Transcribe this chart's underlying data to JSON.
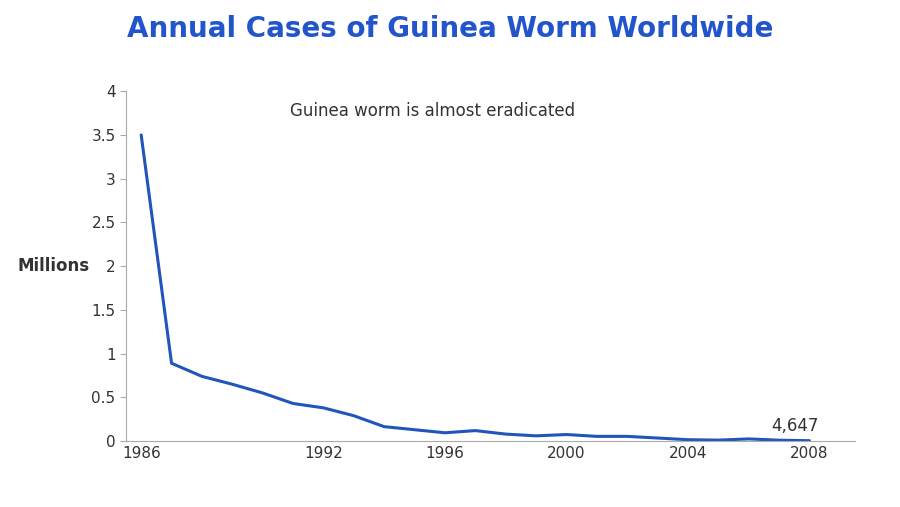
{
  "title": "Annual Cases of Guinea Worm Worldwide",
  "subtitle": "Guinea worm is almost eradicated",
  "ylabel": "Millions",
  "title_color": "#2255CC",
  "subtitle_color": "#333333",
  "line_color": "#2255BB",
  "background_color": "#ffffff",
  "annotation_text": "4,647",
  "annotation_year": 2008,
  "annotation_value": 0.004647,
  "years": [
    1986,
    1987,
    1988,
    1989,
    1990,
    1991,
    1992,
    1993,
    1994,
    1995,
    1996,
    1997,
    1998,
    1999,
    2000,
    2001,
    2002,
    2003,
    2004,
    2005,
    2006,
    2007,
    2008
  ],
  "cases_millions": [
    3.5,
    0.89,
    0.74,
    0.65,
    0.55,
    0.43,
    0.38,
    0.29,
    0.165,
    0.13,
    0.095,
    0.12,
    0.08,
    0.06,
    0.075,
    0.054,
    0.054,
    0.035,
    0.016,
    0.011,
    0.025,
    0.01,
    0.004647
  ],
  "ylim": [
    0,
    4.0
  ],
  "xlim": [
    1985.5,
    2009.5
  ],
  "yticks": [
    0,
    0.5,
    1.0,
    1.5,
    2.0,
    2.5,
    3.0,
    3.5,
    4.0
  ],
  "ytick_labels": [
    "0",
    "0.5",
    "1",
    "1.5",
    "2",
    "2.5",
    "3",
    "3.5",
    "4"
  ],
  "xticks": [
    1986,
    1988,
    1990,
    1992,
    1994,
    1996,
    1998,
    2000,
    2002,
    2004,
    2006,
    2008
  ],
  "xtick_labels": [
    "1986",
    "",
    "",
    "1992",
    "",
    "1996",
    "",
    "2000",
    "",
    "2004",
    "",
    "2008"
  ],
  "spine_color": "#aaaaaa",
  "title_fontsize": 20,
  "subtitle_fontsize": 12,
  "tick_fontsize": 11,
  "ylabel_fontsize": 12,
  "annotation_fontsize": 12
}
